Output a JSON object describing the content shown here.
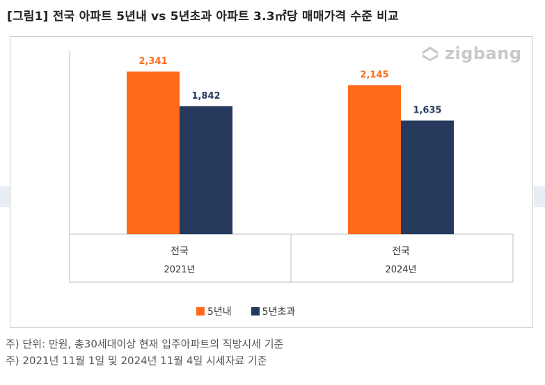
{
  "figure": {
    "title": "[그림1] 전국 아파트 5년내  vs 5년초과 아파트 3.3㎡당 매매가격 수준 비교",
    "watermark": "zigbang",
    "watermark_icon": "zigbang-logo-icon",
    "notes": [
      "주) 단위: 만원, 총30세대이상 현재 입주아파트의 직방시세 기준",
      "주) 2021년 11월 1일 및 2024년 11월 4일 시세자료 기준"
    ]
  },
  "chart_data": {
    "type": "bar",
    "categories": [
      {
        "top": "전국",
        "bottom": "2021년"
      },
      {
        "top": "전국",
        "bottom": "2024년"
      }
    ],
    "series": [
      {
        "name": "5년내",
        "values": [
          2341,
          2145
        ],
        "labels": [
          "2,341",
          "2,145"
        ],
        "color": "#ff6a1a",
        "label_color": "#ff6a1a"
      },
      {
        "name": "5년초과",
        "values": [
          1842,
          1635
        ],
        "labels": [
          "1,842",
          "1,635"
        ],
        "color": "#263a5e",
        "label_color": "#263a5e"
      }
    ],
    "ylim": [
      0,
      2900
    ],
    "grid": false,
    "legend_position": "bottom"
  }
}
